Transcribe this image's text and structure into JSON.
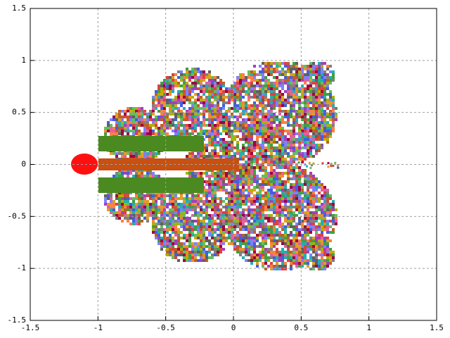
{
  "chart_data": {
    "type": "scatter",
    "xlim": [
      -1.5,
      1.5
    ],
    "ylim": [
      -1.5,
      1.5
    ],
    "xticks": [
      -1.5,
      -1,
      -0.5,
      0,
      0.5,
      1,
      1.5
    ],
    "yticks": [
      -1.5,
      -1,
      -0.5,
      0,
      0.5,
      1,
      1.5
    ],
    "grid": true
  }
}
